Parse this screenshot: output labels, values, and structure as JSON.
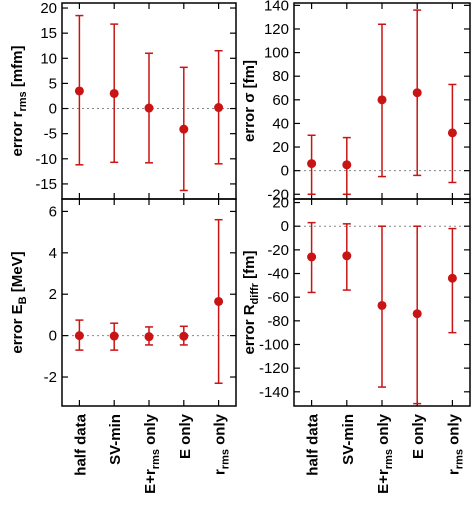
{
  "chart_data": [
    {
      "type": "scatter",
      "panel": "top-left",
      "ylabel": {
        "main": "error r",
        "sub": "rms",
        "unit": " [mfm]"
      },
      "categories": [
        "half data",
        "SV-min",
        "E+r_rms only",
        "E only",
        "r_rms only"
      ],
      "values": [
        3.5,
        3.0,
        0.1,
        -4.1,
        0.2
      ],
      "error_low": [
        -11.2,
        -10.7,
        -10.8,
        -16.3,
        -11.0
      ],
      "error_high": [
        18.5,
        16.8,
        11.0,
        8.2,
        11.5
      ],
      "yticks": [
        -15,
        -10,
        -5,
        0,
        5,
        10,
        15,
        20
      ],
      "ylim": [
        -18,
        21
      ],
      "zero_line": true
    },
    {
      "type": "scatter",
      "panel": "top-right",
      "ylabel": {
        "main": "error σ",
        "sub": "",
        "unit": " [fm]"
      },
      "categories": [
        "half data",
        "SV-min",
        "E+r_rms only",
        "E only",
        "r_rms only"
      ],
      "values": [
        6,
        5,
        60,
        66,
        32
      ],
      "error_low": [
        -20,
        -20,
        -5,
        -4,
        -10
      ],
      "error_high": [
        30,
        28,
        124,
        136,
        73
      ],
      "yticks": [
        -20,
        0,
        20,
        40,
        60,
        80,
        100,
        120,
        140
      ],
      "ylim": [
        -24,
        142
      ],
      "zero_line": true
    },
    {
      "type": "scatter",
      "panel": "bottom-left",
      "ylabel": {
        "main": "error E",
        "sub": "B",
        "unit": " [MeV]"
      },
      "categories": [
        "half data",
        "SV-min",
        "E+r_rms only",
        "E only",
        "r_rms only"
      ],
      "values": [
        0.0,
        -0.02,
        -0.05,
        -0.03,
        1.65
      ],
      "error_low": [
        -0.7,
        -0.7,
        -0.45,
        -0.45,
        -2.3
      ],
      "error_high": [
        0.75,
        0.6,
        0.42,
        0.45,
        5.6
      ],
      "yticks": [
        -2,
        0,
        2,
        4,
        6
      ],
      "ylim": [
        -3.4,
        6.6
      ],
      "zero_line": true
    },
    {
      "type": "scatter",
      "panel": "bottom-right",
      "ylabel": {
        "main": "error R",
        "sub": "diffr",
        "unit": " [fm]"
      },
      "categories": [
        "half data",
        "SV-min",
        "E+r_rms only",
        "E only",
        "r_rms only"
      ],
      "values": [
        -26,
        -25,
        -67,
        -74,
        -44
      ],
      "error_low": [
        -56,
        -54,
        -136,
        -150,
        -90
      ],
      "error_high": [
        3,
        2,
        0,
        0,
        -2
      ],
      "yticks": [
        -140,
        -120,
        -100,
        -80,
        -60,
        -40,
        -20,
        0,
        20
      ],
      "ylim": [
        -152,
        23
      ],
      "zero_line": true
    }
  ],
  "category_labels": [
    {
      "main": "half data",
      "sub": "",
      "suffix": ""
    },
    {
      "main": "SV-min",
      "sub": "",
      "suffix": ""
    },
    {
      "main": "E+r",
      "sub": "rms",
      "suffix": " only"
    },
    {
      "main": "E only",
      "sub": "",
      "suffix": ""
    },
    {
      "main": "r",
      "sub": "rms",
      "suffix": " only"
    }
  ],
  "colors": {
    "marker": "#c81414",
    "errorbar": "#c81414",
    "axis": "#000000",
    "zero_line": "#888888"
  }
}
